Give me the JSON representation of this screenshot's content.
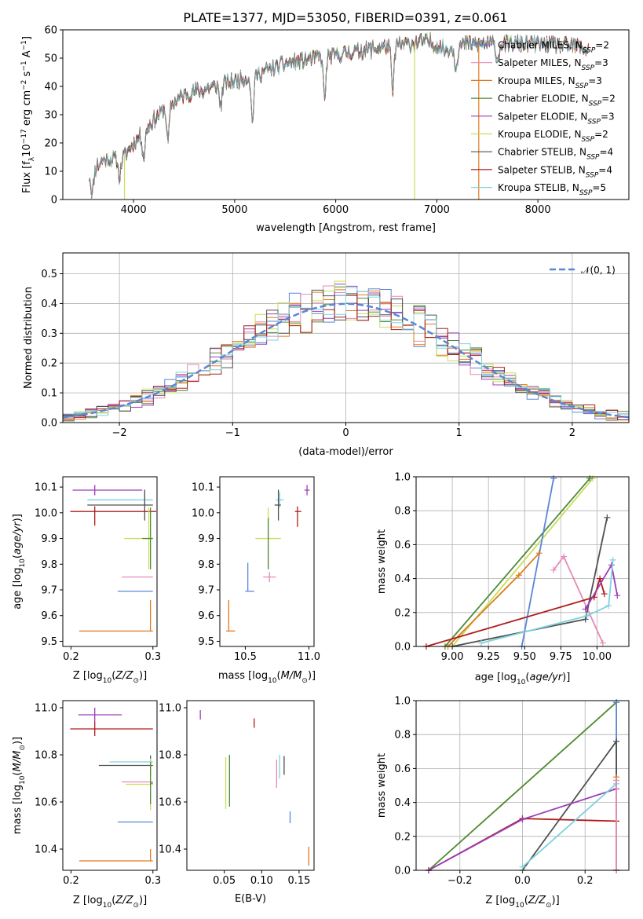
{
  "title": "PLATE=1377, MJD=53050, FIBERID=0391, z=0.061",
  "colors": {
    "Chabrier MILES": "#5b86d6",
    "Salpeter MILES": "#e58ab8",
    "Kroupa MILES": "#e07b1c",
    "Chabrier ELODIE": "#4f8a3a",
    "Salpeter ELODIE": "#9b3fb8",
    "Kroupa ELODIE": "#c9dd5a",
    "Chabrier STELIB": "#505050",
    "Salpeter STELIB": "#b01c1c",
    "Kroupa STELIB": "#7fd3dc"
  },
  "chart_data": [
    {
      "type": "line",
      "panel": "spectrum",
      "xlabel": "wavelength [Angstrom, rest frame]",
      "ylabel": "Flux [f",
      "xlim": [
        3300,
        8900
      ],
      "ylim": [
        0,
        60
      ],
      "xticks": [
        4000,
        5000,
        6000,
        7000,
        8000
      ],
      "yticks": [
        0,
        10,
        20,
        30,
        40,
        50,
        60
      ],
      "data_line": {
        "name": "data",
        "color": "#808080"
      },
      "legend": [
        {
          "model": "Chabrier MILES",
          "n": "2"
        },
        {
          "model": "Salpeter MILES",
          "n": "3"
        },
        {
          "model": "Kroupa MILES",
          "n": "3"
        },
        {
          "model": "Chabrier ELODIE",
          "n": "2"
        },
        {
          "model": "Salpeter ELODIE",
          "n": "3"
        },
        {
          "model": "Kroupa ELODIE",
          "n": "2"
        },
        {
          "model": "Chabrier STELIB",
          "n": "4"
        },
        {
          "model": "Salpeter STELIB",
          "n": "4"
        },
        {
          "model": "Kroupa STELIB",
          "n": "5"
        }
      ],
      "legend_placement": "right",
      "continuum": {
        "x": [
          3560,
          3700,
          3900,
          4000,
          4100,
          4300,
          4500,
          4800,
          5000,
          5200,
          5500,
          5800,
          6000,
          6300,
          6500,
          6700,
          6900,
          7100,
          7300,
          7600,
          8000,
          8400,
          8500
        ],
        "y": [
          9,
          14,
          15,
          20,
          24,
          32,
          37,
          40,
          42,
          44,
          48,
          50,
          51,
          53,
          54,
          55,
          56,
          53,
          55,
          55,
          55,
          54,
          53
        ]
      },
      "dips": [
        {
          "x": 3590,
          "y": 2
        },
        {
          "x": 3860,
          "y": 8
        },
        {
          "x": 4100,
          "y": 15
        },
        {
          "x": 4340,
          "y": 20
        },
        {
          "x": 4861,
          "y": 33
        },
        {
          "x": 5175,
          "y": 28
        },
        {
          "x": 5890,
          "y": 36
        },
        {
          "x": 6563,
          "y": 38
        },
        {
          "x": 7190,
          "y": 47
        },
        {
          "x": 7600,
          "y": 49
        }
      ],
      "spikes": [
        {
          "x": 3910,
          "y": 0,
          "color": "#c9dd5a"
        },
        {
          "x": 6780,
          "y": 0,
          "color": "#c9dd5a"
        },
        {
          "x": 7415,
          "y": 0,
          "color": "#e07b1c"
        }
      ]
    },
    {
      "type": "histogram",
      "panel": "residuals",
      "xlabel": "(data-model)/error",
      "ylabel": "Normed distribution",
      "xlim": [
        -2.5,
        2.5
      ],
      "ylim": [
        0,
        0.57
      ],
      "xticks": [
        -2,
        -1,
        0,
        1,
        2
      ],
      "yticks": [
        0.0,
        0.1,
        0.2,
        0.3,
        0.4,
        0.5
      ],
      "grid": true,
      "bin_width": 0.1,
      "bins_start": -2.5,
      "reference": {
        "label": "𝒩(0, 1)",
        "color": "#5b86d6",
        "legend_placement": "top-right"
      }
    },
    {
      "type": "errorbar",
      "panel": "age-vs-Z",
      "xlabel": "Z [log",
      "ylabel": "age  [log",
      "xlim": [
        0.19,
        0.305
      ],
      "ylim": [
        9.48,
        10.14
      ],
      "xticks": [
        0.2,
        0.3
      ],
      "yticks": [
        9.5,
        9.6,
        9.7,
        9.8,
        9.9,
        10.0,
        10.1
      ],
      "points": [
        {
          "model": "Salpeter ELODIE",
          "x": 0.229,
          "xerr": [
            0.027,
            0.058
          ],
          "y": 10.088,
          "yerr": [
            0.02,
            0.02
          ]
        },
        {
          "model": "Kroupa STELIB",
          "x": 0.29,
          "xerr": [
            0.07,
            0.01
          ],
          "y": 10.05,
          "yerr": [
            0.03,
            0.03
          ]
        },
        {
          "model": "Chabrier STELIB",
          "x": 0.29,
          "xerr": [
            0.07,
            0.01
          ],
          "y": 10.03,
          "yerr": [
            0.06,
            0.06
          ]
        },
        {
          "model": "Salpeter STELIB",
          "x": 0.229,
          "xerr": [
            0.03,
            0.075
          ],
          "y": 10.005,
          "yerr": [
            0.055,
            0.02
          ]
        },
        {
          "model": "Kroupa ELODIE",
          "x": 0.295,
          "xerr": [
            0.03,
            0.005
          ],
          "y": 9.9,
          "yerr": [
            0.12,
            0.12
          ]
        },
        {
          "model": "Chabrier ELODIE",
          "x": 0.297,
          "xerr": [
            0.01,
            0.003
          ],
          "y": 9.9,
          "yerr": [
            0.12,
            0.12
          ]
        },
        {
          "model": "Salpeter MILES",
          "x": 0.297,
          "xerr": [
            0.035,
            0.003
          ],
          "y": 9.75,
          "yerr": [
            0.0,
            0.0
          ]
        },
        {
          "model": "Chabrier MILES",
          "x": 0.297,
          "xerr": [
            0.04,
            0.003
          ],
          "y": 9.695,
          "yerr": [
            0.0,
            0.0
          ]
        },
        {
          "model": "Kroupa MILES",
          "x": 0.297,
          "xerr": [
            0.087,
            0.003
          ],
          "y": 9.54,
          "yerr": [
            0.0,
            0.12
          ]
        }
      ]
    },
    {
      "type": "errorbar",
      "panel": "age-vs-mass",
      "xlabel": "mass [log",
      "ylabel": "",
      "xlim": [
        10.3,
        11.04
      ],
      "ylim": [
        9.48,
        10.14
      ],
      "xticks": [
        10.5,
        11.0
      ],
      "yticks": [
        9.5,
        9.6,
        9.7,
        9.8,
        9.9,
        10.0,
        10.1
      ],
      "points": [
        {
          "model": "Salpeter ELODIE",
          "x": 10.985,
          "xerr": [
            0.02,
            0.02
          ],
          "y": 10.088,
          "yerr": [
            0.02,
            0.02
          ]
        },
        {
          "model": "Kroupa STELIB",
          "x": 10.77,
          "xerr": [
            0.03,
            0.03
          ],
          "y": 10.05,
          "yerr": [
            0.03,
            0.03
          ]
        },
        {
          "model": "Chabrier STELIB",
          "x": 10.76,
          "xerr": [
            0.03,
            0.02
          ],
          "y": 10.03,
          "yerr": [
            0.06,
            0.06
          ]
        },
        {
          "model": "Salpeter STELIB",
          "x": 10.91,
          "xerr": [
            0.02,
            0.03
          ],
          "y": 10.005,
          "yerr": [
            0.06,
            0.02
          ]
        },
        {
          "model": "Kroupa ELODIE",
          "x": 10.68,
          "xerr": [
            0.1,
            0.1
          ],
          "y": 9.9,
          "yerr": [
            0.12,
            0.12
          ]
        },
        {
          "model": "Chabrier ELODIE",
          "x": 10.68,
          "xerr": [
            0.0,
            0.0
          ],
          "y": 9.88,
          "yerr": [
            0.1,
            0.1
          ]
        },
        {
          "model": "Salpeter MILES",
          "x": 10.69,
          "xerr": [
            0.05,
            0.05
          ],
          "y": 9.75,
          "yerr": [
            0.02,
            0.02
          ]
        },
        {
          "model": "Chabrier MILES",
          "x": 10.52,
          "xerr": [
            0.02,
            0.05
          ],
          "y": 9.695,
          "yerr": [
            0.0,
            0.11
          ]
        },
        {
          "model": "Kroupa MILES",
          "x": 10.37,
          "xerr": [
            0.02,
            0.05
          ],
          "y": 9.54,
          "yerr": [
            0.0,
            0.12
          ]
        }
      ]
    },
    {
      "type": "line",
      "panel": "weight-vs-age",
      "xlabel": "age  [log",
      "ylabel": "mass weight",
      "xlim": [
        8.75,
        10.22
      ],
      "ylim": [
        0,
        1
      ],
      "xticks": [
        9.0,
        9.25,
        9.5,
        9.75,
        10.0
      ],
      "yticks": [
        0.0,
        0.2,
        0.4,
        0.6,
        0.8,
        1.0
      ],
      "grid": true,
      "series": [
        {
          "model": "Kroupa ELODIE",
          "x": [
            9.0,
            9.97
          ],
          "y": [
            0.0,
            0.99
          ]
        },
        {
          "model": "Chabrier ELODIE",
          "x": [
            8.95,
            9.95
          ],
          "y": [
            0.0,
            0.99
          ]
        },
        {
          "model": "Chabrier MILES",
          "x": [
            9.48,
            9.7
          ],
          "y": [
            0.0,
            0.99
          ]
        },
        {
          "model": "Kroupa MILES",
          "x": [
            8.97,
            9.46,
            9.6
          ],
          "y": [
            0.0,
            0.42,
            0.55
          ]
        },
        {
          "model": "Salpeter MILES",
          "x": [
            9.7,
            9.77,
            10.04
          ],
          "y": [
            0.45,
            0.53,
            0.02
          ]
        },
        {
          "model": "Chabrier STELIB",
          "x": [
            9.0,
            9.92,
            10.07
          ],
          "y": [
            0.0,
            0.16,
            0.76
          ]
        },
        {
          "model": "Salpeter STELIB",
          "x": [
            8.82,
            9.98,
            10.02,
            10.05
          ],
          "y": [
            0.0,
            0.29,
            0.4,
            0.31
          ]
        },
        {
          "model": "Salpeter ELODIE",
          "x": [
            9.92,
            10.1,
            10.14
          ],
          "y": [
            0.22,
            0.48,
            0.3
          ]
        },
        {
          "model": "Kroupa STELIB",
          "x": [
            9.2,
            9.93,
            10.08,
            10.11
          ],
          "y": [
            0.02,
            0.18,
            0.24,
            0.51
          ]
        }
      ]
    },
    {
      "type": "errorbar",
      "panel": "mass-vs-Z",
      "xlabel": "Z [log",
      "ylabel": "mass [log",
      "xlim": [
        0.19,
        0.305
      ],
      "ylim": [
        10.31,
        11.03
      ],
      "xticks": [
        0.2,
        0.3
      ],
      "yticks": [
        10.4,
        10.6,
        10.8,
        11.0
      ],
      "points": [
        {
          "model": "Salpeter ELODIE",
          "x": 0.229,
          "xerr": [
            0.02,
            0.033
          ],
          "y": 10.97,
          "yerr": [
            0.03,
            0.03
          ]
        },
        {
          "model": "Salpeter STELIB",
          "x": 0.229,
          "xerr": [
            0.03,
            0.071
          ],
          "y": 10.91,
          "yerr": [
            0.03,
            0.03
          ]
        },
        {
          "model": "Kroupa STELIB",
          "x": 0.297,
          "xerr": [
            0.05,
            0.003
          ],
          "y": 10.77,
          "yerr": [
            0.03,
            0.03
          ]
        },
        {
          "model": "Chabrier STELIB",
          "x": 0.297,
          "xerr": [
            0.063,
            0.003
          ],
          "y": 10.755,
          "yerr": [
            0.04,
            0.04
          ]
        },
        {
          "model": "Salpeter MILES",
          "x": 0.297,
          "xerr": [
            0.035,
            0.003
          ],
          "y": 10.685,
          "yerr": [
            0.0,
            0.0
          ]
        },
        {
          "model": "Kroupa ELODIE",
          "x": 0.297,
          "xerr": [
            0.03,
            0.003
          ],
          "y": 10.675,
          "yerr": [
            0.11,
            0.11
          ]
        },
        {
          "model": "Chabrier ELODIE",
          "x": 0.297,
          "xerr": [
            0.0,
            0.003
          ],
          "y": 10.68,
          "yerr": [
            0.09,
            0.09
          ]
        },
        {
          "model": "Chabrier MILES",
          "x": 0.297,
          "xerr": [
            0.04,
            0.003
          ],
          "y": 10.515,
          "yerr": [
            0.0,
            0.0
          ]
        },
        {
          "model": "Kroupa MILES",
          "x": 0.297,
          "xerr": [
            0.087,
            0.003
          ],
          "y": 10.35,
          "yerr": [
            0.0,
            0.05
          ]
        }
      ]
    },
    {
      "type": "errorbar",
      "panel": "mass-vs-EBV",
      "xlabel": "E(B-V)",
      "ylabel": "",
      "xlim": [
        0.0,
        0.17
      ],
      "ylim": [
        10.31,
        11.03
      ],
      "xticks": [
        0.05,
        0.1,
        0.15
      ],
      "tick_labels": [
        "0.05",
        "0.10",
        "0.15"
      ],
      "yticks": [
        10.4,
        10.6,
        10.8,
        11.0
      ],
      "points": [
        {
          "model": "Salpeter ELODIE",
          "x": 0.018,
          "y": 10.97,
          "yerr": [
            0.02,
            0.02
          ]
        },
        {
          "model": "Salpeter STELIB",
          "x": 0.09,
          "y": 10.935,
          "yerr": [
            0.02,
            0.02
          ]
        },
        {
          "model": "Kroupa ELODIE",
          "x": 0.052,
          "y": 10.68,
          "yerr": [
            0.11,
            0.11
          ]
        },
        {
          "model": "Chabrier ELODIE",
          "x": 0.057,
          "y": 10.69,
          "yerr": [
            0.11,
            0.11
          ]
        },
        {
          "model": "Salpeter MILES",
          "x": 0.12,
          "y": 10.72,
          "yerr": [
            0.06,
            0.06
          ]
        },
        {
          "model": "Kroupa STELIB",
          "x": 0.124,
          "y": 10.75,
          "yerr": [
            0.05,
            0.05
          ]
        },
        {
          "model": "Chabrier STELIB",
          "x": 0.13,
          "y": 10.755,
          "yerr": [
            0.04,
            0.04
          ]
        },
        {
          "model": "Chabrier MILES",
          "x": 0.138,
          "y": 10.535,
          "yerr": [
            0.025,
            0.025
          ]
        },
        {
          "model": "Kroupa MILES",
          "x": 0.163,
          "y": 10.37,
          "yerr": [
            0.04,
            0.04
          ]
        }
      ]
    },
    {
      "type": "line",
      "panel": "weight-vs-Z",
      "xlabel": "Z [log",
      "ylabel": "mass weight",
      "xlim": [
        -0.34,
        0.34
      ],
      "ylim": [
        0,
        1
      ],
      "xticks": [
        -0.2,
        0.0,
        0.2
      ],
      "yticks": [
        0.0,
        0.2,
        0.4,
        0.6,
        0.8,
        1.0
      ],
      "grid": true,
      "series": [
        {
          "model": "Kroupa ELODIE",
          "x": [
            -0.3,
            0.3
          ],
          "y": [
            0.0,
            0.99
          ]
        },
        {
          "model": "Chabrier ELODIE",
          "x": [
            -0.3,
            0.3
          ],
          "y": [
            0.0,
            0.99
          ]
        },
        {
          "model": "Chabrier MILES",
          "x": [
            0.3,
            0.3
          ],
          "y": [
            0.0,
            0.99
          ]
        },
        {
          "model": "Chabrier STELIB",
          "x": [
            0.0,
            0.3,
            0.3
          ],
          "y": [
            0.0,
            0.76,
            0.0
          ]
        },
        {
          "model": "Salpeter STELIB",
          "x": [
            -0.3,
            0.0,
            0.3
          ],
          "y": [
            0.0,
            0.305,
            0.29
          ]
        },
        {
          "model": "Salpeter ELODIE",
          "x": [
            -0.3,
            0.0,
            0.3
          ],
          "y": [
            0.0,
            0.3,
            0.48
          ]
        },
        {
          "model": "Kroupa STELIB",
          "x": [
            0.0,
            0.3,
            0.3
          ],
          "y": [
            0.02,
            0.51,
            0.0
          ]
        },
        {
          "model": "Kroupa MILES",
          "x": [
            0.3,
            0.3
          ],
          "y": [
            0.0,
            0.55
          ]
        },
        {
          "model": "Salpeter MILES",
          "x": [
            0.3,
            0.3
          ],
          "y": [
            0.0,
            0.53
          ]
        }
      ]
    }
  ]
}
